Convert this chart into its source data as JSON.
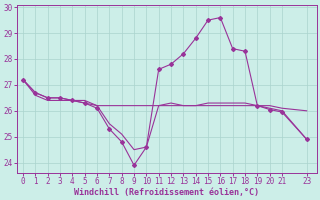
{
  "xlabel": "Windchill (Refroidissement éolien,°C)",
  "background_color": "#cceee8",
  "grid_color": "#aad4ce",
  "line_color": "#993399",
  "ylim": [
    23.6,
    30.1
  ],
  "xlim": [
    -0.5,
    23.8
  ],
  "yticks": [
    24,
    25,
    26,
    27,
    28,
    29,
    30
  ],
  "xticks": [
    0,
    1,
    2,
    3,
    4,
    5,
    6,
    7,
    8,
    9,
    10,
    11,
    12,
    13,
    14,
    15,
    16,
    17,
    18,
    19,
    20,
    21,
    23
  ],
  "curve1_x": [
    0,
    1,
    2,
    3,
    4,
    5,
    6,
    7,
    8,
    9,
    10,
    11,
    12,
    13,
    14,
    15,
    16,
    17,
    18,
    19,
    20,
    21,
    23
  ],
  "curve1_y": [
    27.2,
    26.7,
    26.5,
    26.5,
    26.4,
    26.3,
    26.1,
    25.3,
    24.8,
    23.9,
    24.6,
    27.6,
    27.8,
    28.2,
    28.8,
    29.5,
    29.6,
    28.4,
    28.3,
    26.2,
    26.05,
    25.95,
    24.9
  ],
  "curve2_x": [
    0,
    1,
    2,
    3,
    4,
    5,
    6,
    7,
    8,
    9,
    10,
    11,
    12,
    13,
    14,
    15,
    16,
    17,
    18,
    19,
    20,
    21,
    23
  ],
  "curve2_y": [
    27.2,
    26.6,
    26.4,
    26.4,
    26.4,
    26.3,
    26.2,
    26.2,
    26.2,
    26.2,
    26.2,
    26.2,
    26.2,
    26.2,
    26.2,
    26.2,
    26.2,
    26.2,
    26.2,
    26.2,
    26.2,
    26.1,
    26.0
  ],
  "curve3_x": [
    0,
    1,
    2,
    3,
    4,
    5,
    6,
    7,
    8,
    9,
    10,
    11,
    12,
    13,
    14,
    15,
    16,
    17,
    18,
    19,
    20,
    21,
    23
  ],
  "curve3_y": [
    27.2,
    26.7,
    26.5,
    26.5,
    26.4,
    26.4,
    26.2,
    25.5,
    25.1,
    24.5,
    24.6,
    26.2,
    26.3,
    26.2,
    26.2,
    26.3,
    26.3,
    26.3,
    26.3,
    26.2,
    26.1,
    26.0,
    24.9
  ],
  "tick_fontsize": 5.5,
  "xlabel_fontsize": 6.0
}
